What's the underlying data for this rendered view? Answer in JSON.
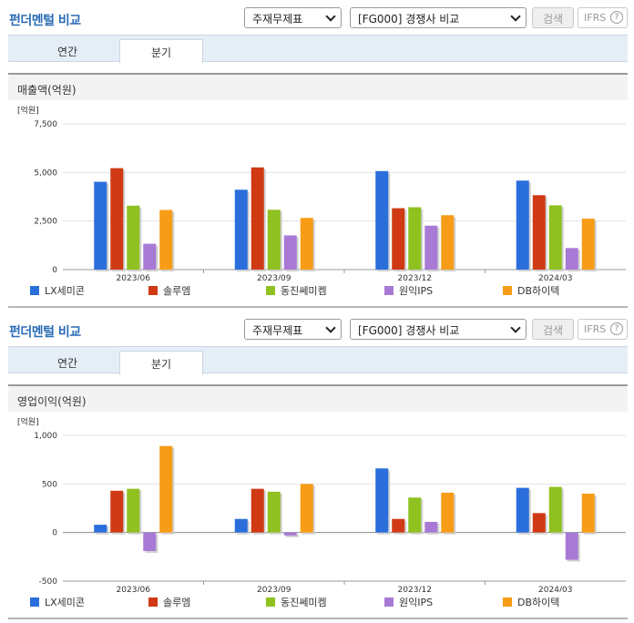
{
  "colors": {
    "LX세미콘": "#2a6edb",
    "솔루엠": "#cf3a14",
    "동진쎄미켐": "#8fc120",
    "원익IPS": "#a87ad6",
    "DB하이텍": "#f79c16"
  },
  "sections": [
    {
      "title": "펀더멘털 비교",
      "select_type": "주재무제표",
      "select_compare": "[FG000] 경쟁사 비교",
      "search_label": "검색",
      "ifrs_label": "IFRS",
      "help_icon": "?",
      "tabs": [
        "연간",
        "분기"
      ],
      "active_tab": "분기",
      "metric_title": "매출액(억원)",
      "unit": "[억원]",
      "chart_data": {
        "type": "bar",
        "categories": [
          "2023/06",
          "2023/09",
          "2023/12",
          "2024/03"
        ],
        "ylim": [
          0,
          7500
        ],
        "yticks": [
          0,
          2500,
          5000,
          7500
        ],
        "ytick_labels": [
          "0",
          "2,500",
          "5,000",
          "7,500"
        ],
        "series": [
          {
            "name": "LX세미콘",
            "values": [
              4520,
              4110,
              5070,
              4580
            ]
          },
          {
            "name": "솔루엠",
            "values": [
              5220,
              5260,
              3160,
              3830
            ]
          },
          {
            "name": "동진쎄미켐",
            "values": [
              3290,
              3080,
              3210,
              3310
            ]
          },
          {
            "name": "원익IPS",
            "values": [
              1330,
              1760,
              2260,
              1110
            ]
          },
          {
            "name": "DB하이텍",
            "values": [
              3070,
              2660,
              2800,
              2620
            ]
          }
        ]
      }
    },
    {
      "title": "펀더멘털 비교",
      "select_type": "주재무제표",
      "select_compare": "[FG000] 경쟁사 비교",
      "search_label": "검색",
      "ifrs_label": "IFRS",
      "help_icon": "?",
      "tabs": [
        "연간",
        "분기"
      ],
      "active_tab": "분기",
      "metric_title": "영업이익(억원)",
      "unit": "[억원]",
      "chart_data": {
        "type": "bar",
        "categories": [
          "2023/06",
          "2023/09",
          "2023/12",
          "2024/03"
        ],
        "ylim": [
          -500,
          1000
        ],
        "yticks": [
          -500,
          0,
          500,
          1000
        ],
        "ytick_labels": [
          "-500",
          "0",
          "500",
          "1,000"
        ],
        "series": [
          {
            "name": "LX세미콘",
            "values": [
              80,
              140,
              660,
              460
            ]
          },
          {
            "name": "솔루엠",
            "values": [
              430,
              450,
              140,
              200
            ]
          },
          {
            "name": "동진쎄미켐",
            "values": [
              450,
              420,
              360,
              470
            ]
          },
          {
            "name": "원익IPS",
            "values": [
              -190,
              -30,
              110,
              -280
            ]
          },
          {
            "name": "DB하이텍",
            "values": [
              890,
              500,
              410,
              400
            ]
          }
        ]
      }
    }
  ]
}
